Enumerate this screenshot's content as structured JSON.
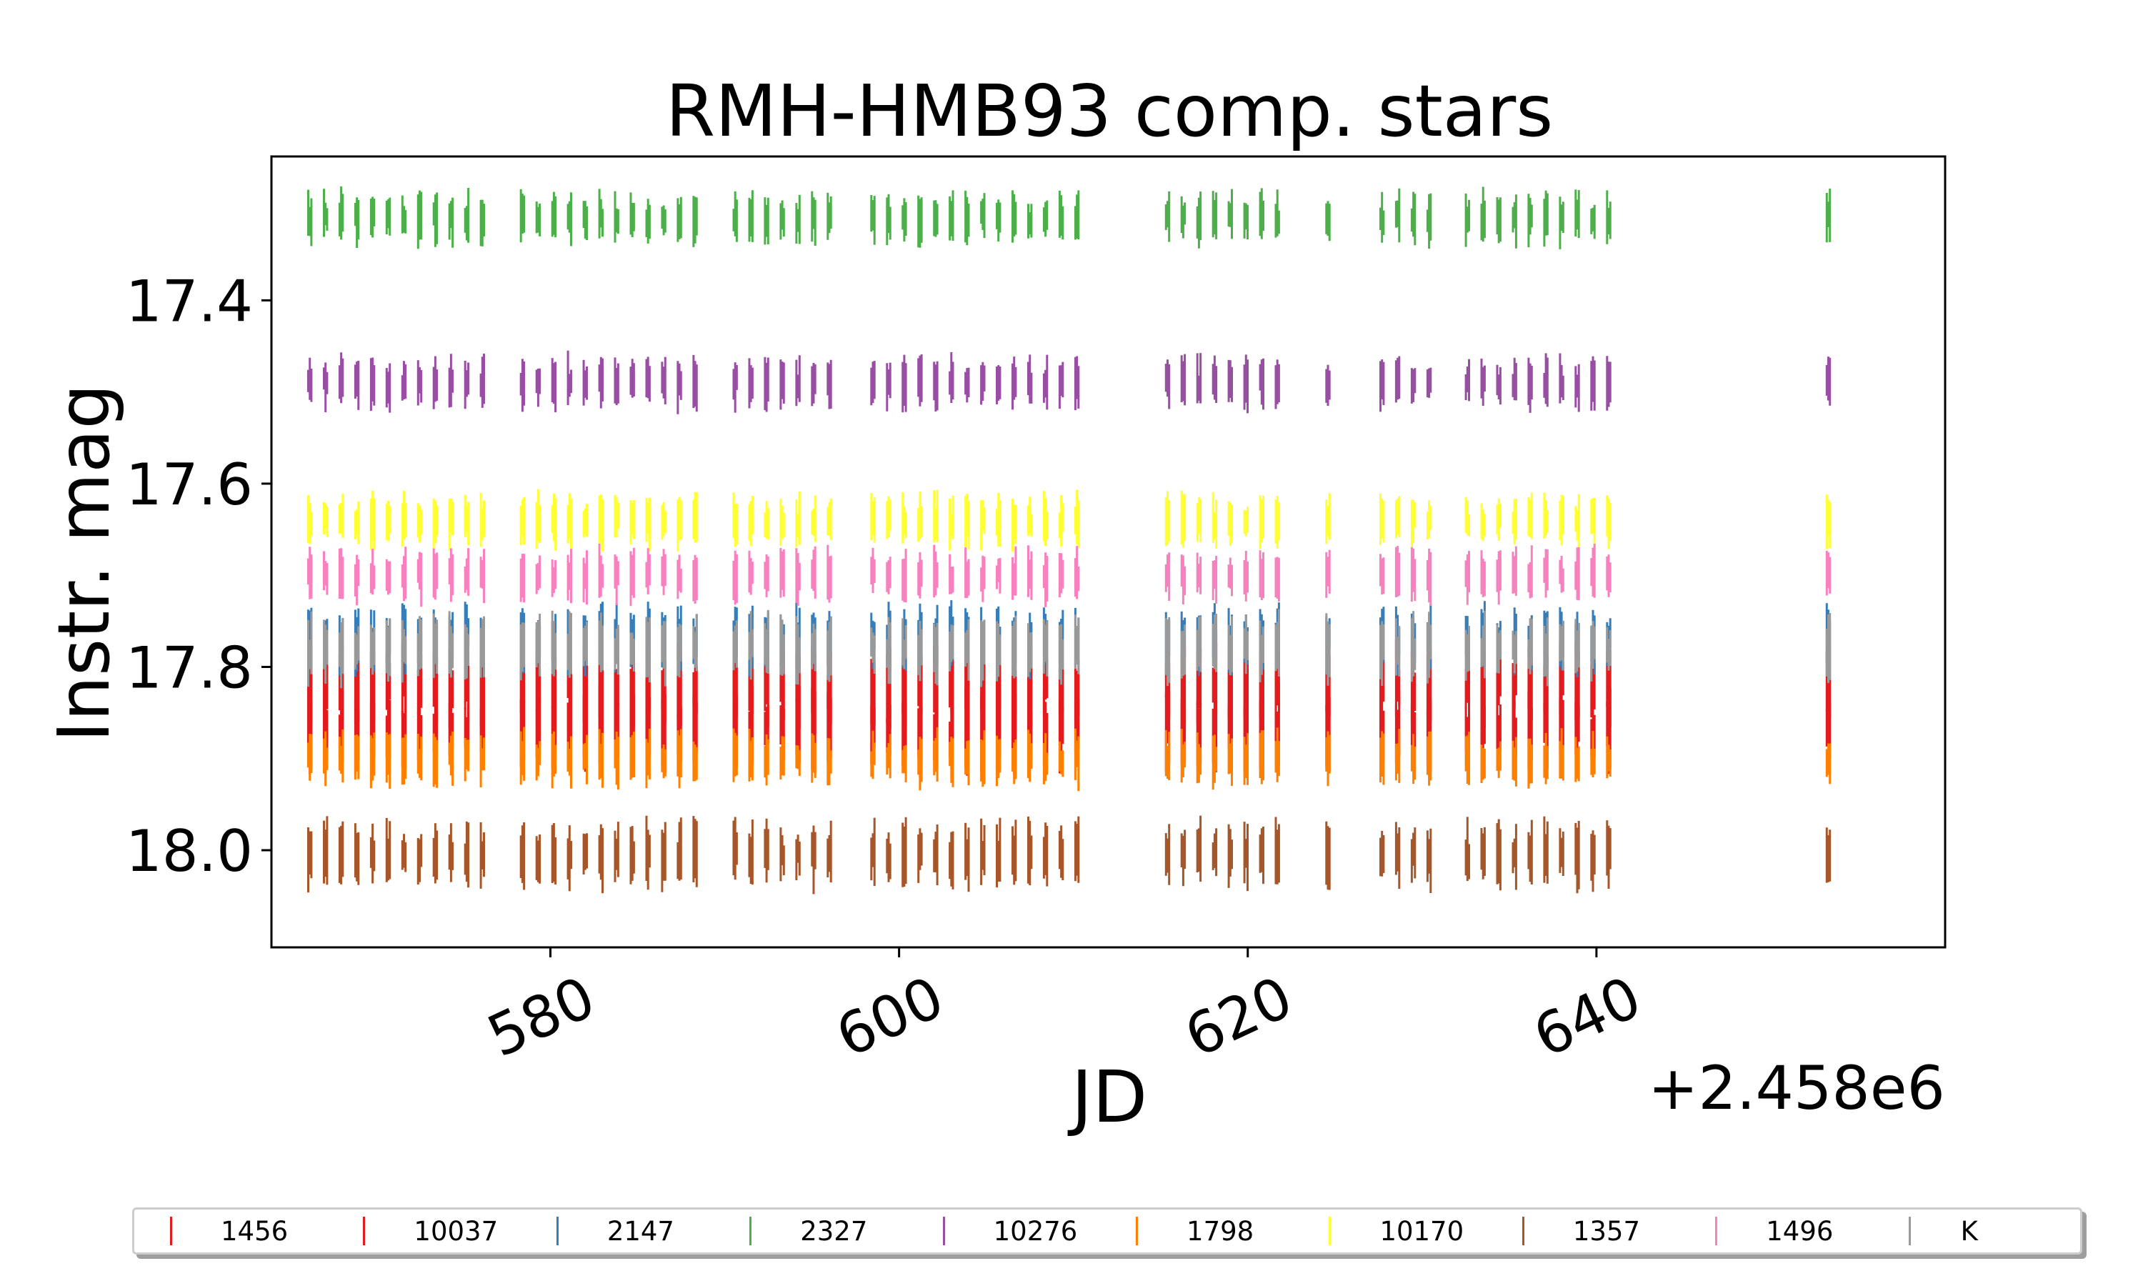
{
  "chart_data": {
    "type": "scatter",
    "title": "RMH-HMB93 comp. stars",
    "xlabel": "JD",
    "ylabel": "Instr. mag",
    "x_offset_label": "+2.458e6",
    "xlim": [
      564.0,
      660.0
    ],
    "ylim": [
      18.106,
      17.243
    ],
    "y_inverted": true,
    "xticks": [
      580,
      600,
      620,
      640
    ],
    "xtick_labels": [
      "580",
      "600",
      "620",
      "640"
    ],
    "yticks": [
      17.4,
      17.6,
      17.8,
      18.0
    ],
    "ytick_labels": [
      "17.4",
      "17.6",
      "17.8",
      "18.0"
    ],
    "marker": "vertical-line",
    "observation_nights": [
      566.2,
      567.1,
      568.0,
      568.9,
      569.8,
      570.7,
      571.6,
      572.5,
      573.4,
      574.3,
      575.2,
      576.1,
      578.4,
      579.3,
      580.2,
      581.1,
      582.0,
      582.9,
      583.8,
      584.7,
      585.6,
      586.5,
      587.4,
      588.3,
      590.6,
      591.5,
      592.4,
      593.3,
      594.2,
      595.1,
      596.0,
      598.5,
      599.4,
      600.3,
      601.2,
      602.1,
      603.0,
      603.9,
      604.8,
      605.7,
      606.6,
      607.5,
      608.4,
      609.3,
      610.2,
      615.4,
      616.3,
      617.2,
      618.1,
      619.0,
      619.9,
      620.8,
      621.7,
      624.6,
      627.7,
      628.6,
      629.5,
      630.4,
      632.6,
      633.5,
      634.4,
      635.3,
      636.2,
      637.1,
      638.0,
      638.9,
      639.8,
      640.7,
      653.3
    ],
    "series": [
      {
        "name": "1456",
        "color": "#e41a1c",
        "mag": 17.87,
        "scatter": 0.03
      },
      {
        "name": "10037",
        "color": "#e41a1c",
        "mag": 17.82,
        "scatter": 0.03
      },
      {
        "name": "2147",
        "color": "#377eb8",
        "mag": 17.77,
        "scatter": 0.025
      },
      {
        "name": "2327",
        "color": "#4daf4a",
        "mag": 17.31,
        "scatter": 0.02
      },
      {
        "name": "10276",
        "color": "#984ea3",
        "mag": 17.49,
        "scatter": 0.02
      },
      {
        "name": "1798",
        "color": "#ff7f00",
        "mag": 17.9,
        "scatter": 0.02
      },
      {
        "name": "10170",
        "color": "#ffff33",
        "mag": 17.64,
        "scatter": 0.02
      },
      {
        "name": "1357",
        "color": "#a65628",
        "mag": 18.005,
        "scatter": 0.025
      },
      {
        "name": "1496",
        "color": "#f781bf",
        "mag": 17.7,
        "scatter": 0.02
      },
      {
        "name": "K",
        "color": "#999999",
        "mag": 17.78,
        "scatter": 0.025
      }
    ]
  }
}
